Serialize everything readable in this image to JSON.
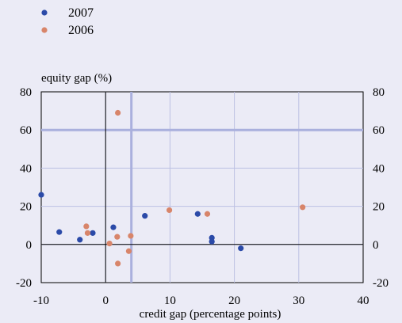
{
  "chart_data": {
    "type": "scatter",
    "title": "",
    "xlabel": "credit gap (percentage points)",
    "ylabel": "equity gap (%)",
    "xlim": [
      -10,
      40
    ],
    "ylim": [
      -20,
      80
    ],
    "xticks": [
      -10,
      0,
      10,
      20,
      30,
      40
    ],
    "yticks": [
      -20,
      0,
      20,
      40,
      60,
      80
    ],
    "xtick_labels": [
      "-10",
      "0",
      "10",
      "20",
      "30",
      "40"
    ],
    "ytick_labels": [
      "-20",
      "0",
      "20",
      "40",
      "60",
      "80"
    ],
    "grid": true,
    "legend_position": "top-left",
    "reference_lines": {
      "x": 4,
      "y": 60,
      "color": "#aab0dd"
    },
    "series": [
      {
        "name": "2007",
        "color": "#2b4aa8",
        "points": [
          [
            -10,
            26
          ],
          [
            -7.2,
            6.5
          ],
          [
            -4,
            2.5
          ],
          [
            -2,
            6
          ],
          [
            1.2,
            9
          ],
          [
            6.1,
            15
          ],
          [
            14.3,
            16
          ],
          [
            16.5,
            3.5
          ],
          [
            16.5,
            1.5
          ],
          [
            21,
            -2
          ]
        ]
      },
      {
        "name": "2006",
        "color": "#d8856a",
        "points": [
          [
            1.9,
            69
          ],
          [
            -3,
            9.5
          ],
          [
            -2.8,
            6
          ],
          [
            0.6,
            0.5
          ],
          [
            1.8,
            4
          ],
          [
            3.9,
            4.5
          ],
          [
            1.9,
            -10
          ],
          [
            3.6,
            -3.5
          ],
          [
            9.9,
            18
          ],
          [
            15.8,
            16
          ],
          [
            30.6,
            19.5
          ]
        ]
      }
    ]
  }
}
